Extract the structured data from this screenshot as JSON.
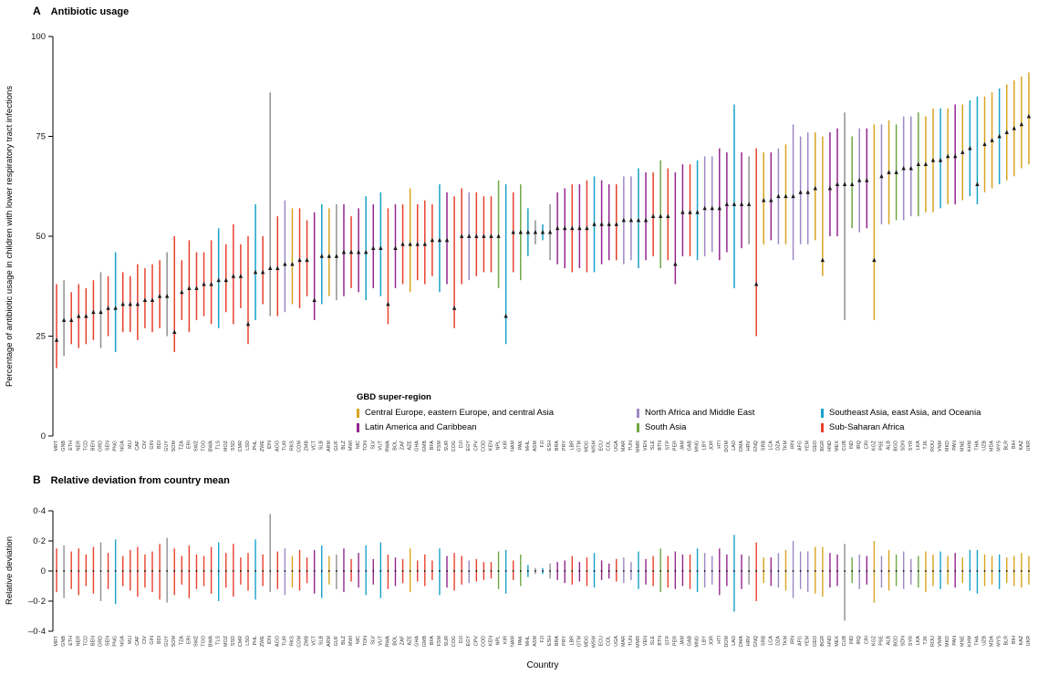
{
  "chart_data": {
    "panel_a": {
      "panel_label": "A",
      "title": "Antibiotic usage",
      "type": "scatter",
      "ylabel": "Percentage of antibiotic usage in children with lower respiratory tract infections",
      "ylim": [
        0,
        100
      ],
      "yticks": [
        0,
        25,
        50,
        75,
        100
      ],
      "grid": false,
      "marker": "black-triangle-up",
      "interval_style": "vertical-line-colored-by-region"
    },
    "panel_b": {
      "panel_label": "B",
      "title": "Relative deviation from country mean",
      "type": "bar",
      "ylabel": "Relative deviation",
      "xlabel": "Country",
      "ylim": [
        -0.4,
        0.4
      ],
      "ytick_labels": [
        "0·4",
        "0·2",
        "0",
        "–0·2",
        "–0·4"
      ],
      "ytick_values": [
        0.4,
        0.2,
        0,
        -0.2,
        -0.4
      ],
      "zero_marker": "black-dot-per-country"
    },
    "legend": {
      "title": "GBD super-region",
      "position": "inside-bottom-center",
      "items": [
        {
          "key": "CEECA",
          "label": "Central Europe, eastern Europe, and central Asia",
          "color": "#D8A41E"
        },
        {
          "key": "LAC",
          "label": "Latin America and Caribbean",
          "color": "#93268F"
        },
        {
          "key": "NAME",
          "label": "North Africa and Middle East",
          "color": "#9C88C5"
        },
        {
          "key": "SA",
          "label": "South Asia",
          "color": "#6FA645"
        },
        {
          "key": "SEA",
          "label": "Southeast Asia, east Asia, and Oceania",
          "color": "#18A2C9"
        },
        {
          "key": "SSA",
          "label": "Sub-Saharan Africa",
          "color": "#E8402D"
        }
      ]
    },
    "unclassified_color": "#909090",
    "point_color": "#1a1a1a",
    "countries": [
      "MRT",
      "GNB",
      "ETH",
      "NER",
      "TCD",
      "BEN",
      "GRD",
      "SEN",
      "PNG",
      "NGA",
      "MLI",
      "CAF",
      "CIV",
      "GIN",
      "BDI",
      "GUY",
      "SOM",
      "TZA",
      "ERI",
      "SWZ",
      "TGO",
      "BWA",
      "TLS",
      "MOZ",
      "SSD",
      "CMR",
      "LSO",
      "PHL",
      "ZWE",
      "IDN",
      "AGO",
      "TUR",
      "RKS",
      "COM",
      "ZMB",
      "VCT",
      "SLB",
      "ARM",
      "GUF",
      "BLZ",
      "MWI",
      "NIC",
      "TON",
      "SLV",
      "VUT",
      "RWA",
      "BOL",
      "ZAF",
      "AZE",
      "GHA",
      "GMB",
      "BFA",
      "FSM",
      "SUR",
      "COG",
      "DJI",
      "EGY",
      "CPV",
      "COD",
      "KEN",
      "NPL",
      "KIR",
      "NAM",
      "PAK",
      "MHL",
      "ASM",
      "FJI",
      "ESH",
      "BRA",
      "PRY",
      "LBR",
      "GTM",
      "MDG",
      "WSM",
      "ECU",
      "COL",
      "UGA",
      "MAR",
      "TUN",
      "MMR",
      "VEN",
      "SLE",
      "BTN",
      "STP",
      "PER",
      "JAM",
      "GAB",
      "MNG",
      "LBY",
      "JOR",
      "HTI",
      "DOM",
      "LAO",
      "DMA",
      "HRV",
      "GNQ",
      "SRB",
      "LCA",
      "DZA",
      "TKM",
      "IRN",
      "AFG",
      "YEM",
      "GEO",
      "BGR",
      "HND",
      "MEX",
      "CUB",
      "IND",
      "IRQ",
      "CRI",
      "KGZ",
      "PSE",
      "ALB",
      "BGD",
      "SDN",
      "SYR",
      "LKA",
      "TJK",
      "ROU",
      "VNM",
      "MKD",
      "PAN",
      "MNE",
      "KHM",
      "THA",
      "UZB",
      "MDA",
      "MYS",
      "BLR",
      "BIH",
      "KAZ",
      "UKR"
    ],
    "regions": [
      "SSA",
      "GRY",
      "SSA",
      "SSA",
      "SSA",
      "SSA",
      "GRY",
      "SSA",
      "SEA",
      "SSA",
      "SSA",
      "SSA",
      "SSA",
      "SSA",
      "SSA",
      "GRY",
      "SSA",
      "SSA",
      "SSA",
      "SSA",
      "SSA",
      "SSA",
      "SEA",
      "SSA",
      "SSA",
      "SSA",
      "SSA",
      "SEA",
      "SSA",
      "GRY",
      "SSA",
      "NAME",
      "CEECA",
      "SSA",
      "SSA",
      "LAC",
      "SEA",
      "CEECA",
      "GRY",
      "LAC",
      "SSA",
      "LAC",
      "SEA",
      "LAC",
      "SEA",
      "SSA",
      "LAC",
      "SSA",
      "CEECA",
      "SSA",
      "SSA",
      "SSA",
      "SEA",
      "LAC",
      "SSA",
      "SSA",
      "NAME",
      "SSA",
      "SSA",
      "SSA",
      "SA",
      "SEA",
      "SSA",
      "SA",
      "SEA",
      "GRY",
      "SEA",
      "GRY",
      "LAC",
      "LAC",
      "SSA",
      "LAC",
      "SSA",
      "SEA",
      "LAC",
      "LAC",
      "SSA",
      "NAME",
      "NAME",
      "SEA",
      "LAC",
      "SSA",
      "SA",
      "SSA",
      "LAC",
      "LAC",
      "SSA",
      "SEA",
      "NAME",
      "NAME",
      "LAC",
      "LAC",
      "SEA",
      "LAC",
      "GRY",
      "SSA",
      "CEECA",
      "LAC",
      "NAME",
      "CEECA",
      "NAME",
      "NAME",
      "NAME",
      "CEECA",
      "CEECA",
      "LAC",
      "LAC",
      "GRY",
      "SA",
      "NAME",
      "LAC",
      "CEECA",
      "NAME",
      "CEECA",
      "SA",
      "NAME",
      "NAME",
      "SA",
      "CEECA",
      "CEECA",
      "SEA",
      "CEECA",
      "LAC",
      "CEECA",
      "SEA",
      "SEA",
      "CEECA",
      "CEECA",
      "SEA",
      "CEECA",
      "CEECA",
      "CEECA",
      "CEECA"
    ],
    "usage_mean": [
      24,
      29,
      29,
      30,
      30,
      31,
      31,
      32,
      32,
      33,
      33,
      33,
      34,
      34,
      35,
      35,
      26,
      36,
      37,
      37,
      38,
      38,
      39,
      39,
      40,
      40,
      28,
      41,
      41,
      42,
      42,
      43,
      43,
      44,
      44,
      34,
      45,
      45,
      45,
      46,
      46,
      46,
      46,
      47,
      47,
      33,
      47,
      48,
      48,
      48,
      48,
      49,
      49,
      49,
      32,
      50,
      50,
      50,
      50,
      50,
      50,
      30,
      51,
      51,
      51,
      51,
      51,
      51,
      52,
      52,
      52,
      52,
      52,
      53,
      53,
      53,
      53,
      54,
      54,
      54,
      54,
      55,
      55,
      55,
      43,
      56,
      56,
      56,
      57,
      57,
      57,
      58,
      58,
      58,
      58,
      38,
      59,
      59,
      60,
      60,
      60,
      61,
      61,
      62,
      44,
      62,
      63,
      63,
      63,
      64,
      64,
      44,
      65,
      66,
      66,
      67,
      67,
      68,
      68,
      69,
      69,
      70,
      70,
      71,
      72,
      63,
      73,
      74,
      75,
      76,
      77,
      78,
      80
    ],
    "usage_lower": [
      17,
      20,
      23,
      22,
      23,
      24,
      22,
      25,
      21,
      26,
      26,
      24,
      27,
      26,
      27,
      25,
      21,
      29,
      26,
      29,
      30,
      28,
      27,
      31,
      28,
      32,
      23,
      29,
      33,
      30,
      30,
      31,
      33,
      32,
      35,
      29,
      33,
      35,
      34,
      35,
      37,
      36,
      34,
      37,
      35,
      28,
      37,
      38,
      36,
      39,
      38,
      40,
      36,
      38,
      27,
      38,
      39,
      40,
      41,
      41,
      37,
      23,
      41,
      39,
      45,
      48,
      49,
      44,
      43,
      42,
      41,
      42,
      41,
      41,
      43,
      44,
      44,
      43,
      44,
      42,
      44,
      45,
      42,
      44,
      38,
      45,
      45,
      44,
      45,
      46,
      44,
      46,
      37,
      47,
      48,
      25,
      48,
      49,
      48,
      48,
      44,
      48,
      48,
      49,
      40,
      50,
      50,
      29,
      52,
      51,
      52,
      29,
      53,
      53,
      54,
      54,
      55,
      55,
      56,
      56,
      57,
      58,
      58,
      59,
      60,
      58,
      61,
      62,
      63,
      64,
      65,
      67,
      68
    ],
    "usage_upper": [
      38,
      39,
      36,
      38,
      37,
      39,
      41,
      40,
      46,
      41,
      40,
      43,
      42,
      43,
      44,
      46,
      50,
      44,
      49,
      46,
      46,
      49,
      52,
      48,
      53,
      48,
      50,
      58,
      50,
      86,
      55,
      59,
      57,
      57,
      54,
      56,
      58,
      57,
      58,
      58,
      55,
      57,
      60,
      58,
      61,
      57,
      58,
      58,
      62,
      58,
      59,
      58,
      63,
      61,
      60,
      62,
      61,
      61,
      60,
      60,
      64,
      63,
      61,
      63,
      57,
      54,
      53,
      58,
      61,
      62,
      63,
      63,
      64,
      65,
      64,
      63,
      63,
      65,
      65,
      67,
      66,
      66,
      69,
      67,
      66,
      68,
      68,
      69,
      70,
      70,
      72,
      71,
      83,
      71,
      70,
      72,
      71,
      71,
      72,
      73,
      78,
      75,
      76,
      76,
      75,
      76,
      77,
      81,
      75,
      77,
      77,
      78,
      78,
      79,
      78,
      80,
      80,
      81,
      80,
      82,
      82,
      82,
      83,
      83,
      84,
      85,
      85,
      86,
      87,
      88,
      89,
      90,
      91
    ],
    "deviation_min": [
      -0.14,
      -0.18,
      -0.12,
      -0.16,
      -0.1,
      -0.15,
      -0.2,
      -0.12,
      -0.22,
      -0.1,
      -0.13,
      -0.17,
      -0.11,
      -0.14,
      -0.19,
      -0.21,
      -0.16,
      -0.09,
      -0.18,
      -0.12,
      -0.1,
      -0.15,
      -0.2,
      -0.11,
      -0.17,
      -0.09,
      -0.13,
      -0.19,
      -0.1,
      -0.14,
      -0.12,
      -0.16,
      -0.11,
      -0.13,
      -0.08,
      -0.15,
      -0.18,
      -0.09,
      -0.12,
      -0.14,
      -0.07,
      -0.11,
      -0.16,
      -0.09,
      -0.18,
      -0.12,
      -0.1,
      -0.08,
      -0.14,
      -0.07,
      -0.1,
      -0.06,
      -0.16,
      -0.11,
      -0.13,
      -0.09,
      -0.08,
      -0.07,
      -0.06,
      -0.05,
      -0.12,
      -0.15,
      -0.06,
      -0.1,
      -0.04,
      -0.02,
      -0.02,
      -0.05,
      -0.06,
      -0.08,
      -0.09,
      -0.07,
      -0.1,
      -0.11,
      -0.06,
      -0.05,
      -0.07,
      -0.08,
      -0.06,
      -0.12,
      -0.09,
      -0.1,
      -0.14,
      -0.11,
      -0.12,
      -0.1,
      -0.12,
      -0.14,
      -0.11,
      -0.09,
      -0.16,
      -0.1,
      -0.27,
      -0.12,
      -0.09,
      -0.2,
      -0.08,
      -0.1,
      -0.11,
      -0.13,
      -0.18,
      -0.12,
      -0.14,
      -0.15,
      -0.17,
      -0.11,
      -0.1,
      -0.33,
      -0.08,
      -0.12,
      -0.09,
      -0.21,
      -0.11,
      -0.13,
      -0.1,
      -0.12,
      -0.09,
      -0.11,
      -0.14,
      -0.1,
      -0.12,
      -0.09,
      -0.11,
      -0.08,
      -0.13,
      -0.15,
      -0.1,
      -0.09,
      -0.12,
      -0.08,
      -0.1,
      -0.11,
      -0.09
    ],
    "deviation_max": [
      0.15,
      0.17,
      0.13,
      0.15,
      0.11,
      0.16,
      0.19,
      0.12,
      0.21,
      0.1,
      0.14,
      0.16,
      0.11,
      0.13,
      0.18,
      0.22,
      0.15,
      0.1,
      0.17,
      0.11,
      0.1,
      0.16,
      0.19,
      0.12,
      0.18,
      0.09,
      0.12,
      0.21,
      0.11,
      0.38,
      0.13,
      0.15,
      0.1,
      0.14,
      0.09,
      0.14,
      0.17,
      0.1,
      0.11,
      0.15,
      0.08,
      0.12,
      0.17,
      0.08,
      0.19,
      0.11,
      0.09,
      0.08,
      0.15,
      0.07,
      0.11,
      0.07,
      0.15,
      0.1,
      0.12,
      0.1,
      0.07,
      0.08,
      0.06,
      0.06,
      0.13,
      0.14,
      0.07,
      0.11,
      0.04,
      0.02,
      0.02,
      0.05,
      0.06,
      0.07,
      0.1,
      0.06,
      0.09,
      0.12,
      0.07,
      0.05,
      0.08,
      0.09,
      0.06,
      0.13,
      0.08,
      0.1,
      0.15,
      0.1,
      0.13,
      0.11,
      0.11,
      0.15,
      0.12,
      0.1,
      0.15,
      0.11,
      0.24,
      0.11,
      0.1,
      0.19,
      0.09,
      0.09,
      0.12,
      0.14,
      0.2,
      0.13,
      0.13,
      0.16,
      0.16,
      0.12,
      0.11,
      0.18,
      0.09,
      0.11,
      0.1,
      0.2,
      0.1,
      0.14,
      0.11,
      0.13,
      0.08,
      0.1,
      0.13,
      0.11,
      0.13,
      0.1,
      0.12,
      0.09,
      0.14,
      0.14,
      0.11,
      0.1,
      0.11,
      0.09,
      0.1,
      0.12,
      0.1
    ]
  }
}
